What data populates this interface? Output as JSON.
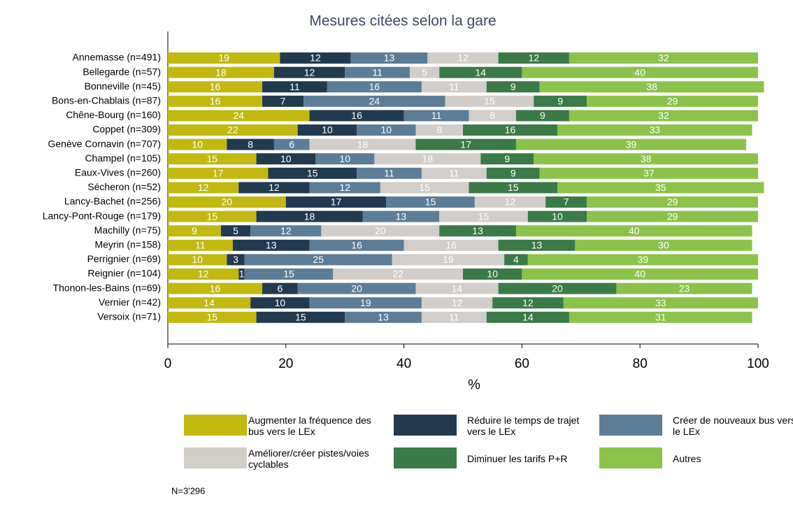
{
  "chart_data": {
    "type": "stacked_barh",
    "title": "Mesures citées selon la gare",
    "xlabel": "%",
    "note": "N=3'296",
    "categories": [
      "Annemasse (n=491)",
      "Bellegarde (n=57)",
      "Bonneville (n=45)",
      "Bons-en-Chablais (n=87)",
      "Chêne-Bourg (n=160)",
      "Coppet (n=309)",
      "Genève Cornavin (n=707)",
      "Champel (n=105)",
      "Eaux-Vives (n=260)",
      "Sécheron (n=52)",
      "Lancy-Bachet (n=256)",
      "Lancy-Pont-Rouge (n=179)",
      "Machilly (n=75)",
      "Meyrin (n=158)",
      "Perrignier (n=69)",
      "Reignier (n=104)",
      "Thonon-les-Bains (n=69)",
      "Vernier (n=42)",
      "Versoix (n=71)"
    ],
    "series": [
      {
        "name": "Augmenter la fréquence des bus vers le LEx",
        "color": "#c2b80f",
        "values": [
          19,
          18,
          16,
          16,
          24,
          22,
          10,
          15,
          17,
          12,
          20,
          15,
          9,
          11,
          10,
          12,
          16,
          14,
          15
        ]
      },
      {
        "name": "Réduire le temps de trajet vers le LEx",
        "color": "#213a50",
        "values": [
          12,
          12,
          11,
          7,
          16,
          10,
          8,
          10,
          15,
          12,
          17,
          18,
          5,
          13,
          3,
          1,
          6,
          10,
          15
        ]
      },
      {
        "name": "Créer de nouveaux bus vers le LEx",
        "color": "#5b7d98",
        "values": [
          13,
          11,
          16,
          24,
          11,
          10,
          6,
          10,
          11,
          12,
          15,
          13,
          12,
          16,
          25,
          15,
          20,
          19,
          13
        ]
      },
      {
        "name": "Améliorer/créer pistes/voies cyclables",
        "color": "#d1cdc8",
        "values": [
          12,
          5,
          11,
          15,
          8,
          8,
          18,
          18,
          11,
          15,
          12,
          15,
          20,
          16,
          19,
          22,
          14,
          12,
          11
        ]
      },
      {
        "name": "Diminuer les tarifs P+R",
        "color": "#3a7a47",
        "values": [
          12,
          14,
          9,
          9,
          9,
          16,
          17,
          9,
          9,
          15,
          7,
          10,
          13,
          13,
          4,
          10,
          20,
          12,
          14
        ]
      },
      {
        "name": "Autres",
        "color": "#8bc34a",
        "values": [
          32,
          40,
          38,
          29,
          32,
          33,
          39,
          38,
          37,
          35,
          29,
          29,
          40,
          30,
          39,
          40,
          23,
          33,
          31
        ]
      }
    ],
    "xlim": [
      0,
      100
    ],
    "xticks": [
      0,
      20,
      40,
      60,
      80,
      100
    ]
  }
}
